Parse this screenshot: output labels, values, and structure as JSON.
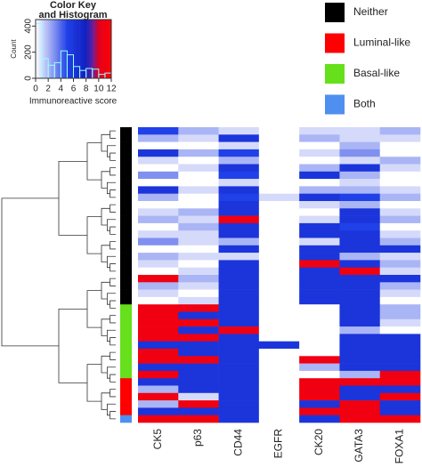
{
  "chart_data": {
    "type": "heatmap",
    "columns": [
      "CK5",
      "p63",
      "CD44",
      "EGFR",
      "CK20",
      "GATA3",
      "FOXA1"
    ],
    "z": [
      [
        5,
        2,
        1,
        0,
        1,
        1,
        2
      ],
      [
        2,
        1,
        6,
        0,
        2,
        1,
        1
      ],
      [
        0,
        0,
        1,
        0,
        0,
        2,
        0
      ],
      [
        6,
        2,
        5,
        0,
        1,
        3,
        0
      ],
      [
        1,
        0,
        2,
        0,
        0,
        1,
        2
      ],
      [
        0,
        1,
        6,
        0,
        2,
        6,
        1
      ],
      [
        3,
        0,
        5,
        0,
        6,
        2,
        0
      ],
      [
        0,
        0,
        1,
        0,
        0,
        1,
        0
      ],
      [
        6,
        1,
        6,
        0,
        2,
        2,
        1
      ],
      [
        2,
        0,
        5,
        1,
        6,
        5,
        2
      ],
      [
        0,
        0,
        6,
        0,
        1,
        2,
        0
      ],
      [
        1,
        2,
        6,
        0,
        0,
        6,
        1
      ],
      [
        2,
        1,
        11,
        0,
        1,
        6,
        2
      ],
      [
        0,
        2,
        6,
        0,
        6,
        5,
        0
      ],
      [
        1,
        1,
        6,
        0,
        6,
        6,
        1
      ],
      [
        3,
        1,
        2,
        0,
        1,
        6,
        2
      ],
      [
        0,
        0,
        6,
        0,
        6,
        6,
        6
      ],
      [
        2,
        1,
        1,
        0,
        6,
        2,
        1
      ],
      [
        1,
        0,
        6,
        0,
        11,
        6,
        2
      ],
      [
        0,
        1,
        6,
        0,
        6,
        11,
        1
      ],
      [
        11,
        2,
        6,
        0,
        6,
        6,
        6
      ],
      [
        2,
        1,
        6,
        0,
        6,
        6,
        2
      ],
      [
        1,
        0,
        6,
        0,
        6,
        6,
        1
      ],
      [
        0,
        1,
        6,
        0,
        6,
        6,
        0
      ],
      [
        11,
        11,
        6,
        0,
        0,
        6,
        2
      ],
      [
        11,
        6,
        6,
        0,
        0,
        6,
        2
      ],
      [
        11,
        11,
        6,
        0,
        0,
        6,
        1
      ],
      [
        11,
        6,
        11,
        0,
        0,
        2,
        0
      ],
      [
        11,
        11,
        6,
        0,
        0,
        6,
        6
      ],
      [
        6,
        6,
        6,
        6,
        0,
        6,
        6
      ],
      [
        11,
        6,
        6,
        0,
        0,
        6,
        6
      ],
      [
        11,
        11,
        6,
        0,
        11,
        6,
        6
      ],
      [
        6,
        6,
        6,
        0,
        2,
        6,
        6
      ],
      [
        11,
        6,
        6,
        0,
        0,
        2,
        11
      ],
      [
        6,
        6,
        6,
        0,
        11,
        11,
        11
      ],
      [
        2,
        6,
        6,
        0,
        11,
        6,
        6
      ],
      [
        11,
        1,
        6,
        0,
        11,
        6,
        11
      ],
      [
        2,
        11,
        6,
        0,
        6,
        11,
        6
      ],
      [
        6,
        6,
        6,
        0,
        11,
        11,
        6
      ],
      [
        11,
        11,
        6,
        0,
        6,
        11,
        11
      ]
    ],
    "row_groups": [
      "Neither",
      "Neither",
      "Neither",
      "Neither",
      "Neither",
      "Neither",
      "Neither",
      "Neither",
      "Neither",
      "Neither",
      "Neither",
      "Neither",
      "Neither",
      "Neither",
      "Neither",
      "Neither",
      "Neither",
      "Neither",
      "Neither",
      "Neither",
      "Neither",
      "Neither",
      "Neither",
      "Neither",
      "Basal-like",
      "Basal-like",
      "Basal-like",
      "Basal-like",
      "Basal-like",
      "Basal-like",
      "Basal-like",
      "Basal-like",
      "Basal-like",
      "Basal-like",
      "Luminal-like",
      "Luminal-like",
      "Luminal-like",
      "Luminal-like",
      "Luminal-like",
      "Both"
    ],
    "series": [
      {
        "name": "Neither",
        "color": "#000000"
      },
      {
        "name": "Luminal-like",
        "color": "#ff0000"
      },
      {
        "name": "Basal-like",
        "color": "#66e01a"
      },
      {
        "name": "Both",
        "color": "#4f8ff0"
      }
    ],
    "colorscale": [
      [
        0,
        "#ffffff"
      ],
      [
        3,
        "#8090f0"
      ],
      [
        5,
        "#2040e8"
      ],
      [
        8,
        "#1020c0"
      ],
      [
        9,
        "#6020a0"
      ],
      [
        10,
        "#e00020"
      ],
      [
        12,
        "#ff0000"
      ]
    ],
    "color_key": {
      "title": "Color Key\nand Histogram",
      "xlabel": "Immunoreactive score",
      "ylabel": "Count",
      "bins": [
        0,
        1,
        2,
        3,
        4,
        5,
        6,
        7,
        8,
        9,
        10,
        11,
        12
      ],
      "counts": [
        420,
        150,
        100,
        120,
        210,
        180,
        90,
        60,
        75,
        70,
        30,
        40,
        80
      ],
      "xlim": [
        0,
        12
      ],
      "xticks": [
        0,
        2,
        4,
        6,
        8,
        10,
        12
      ],
      "ylim": [
        0,
        450
      ],
      "yticks": [
        0,
        200,
        400
      ]
    }
  }
}
